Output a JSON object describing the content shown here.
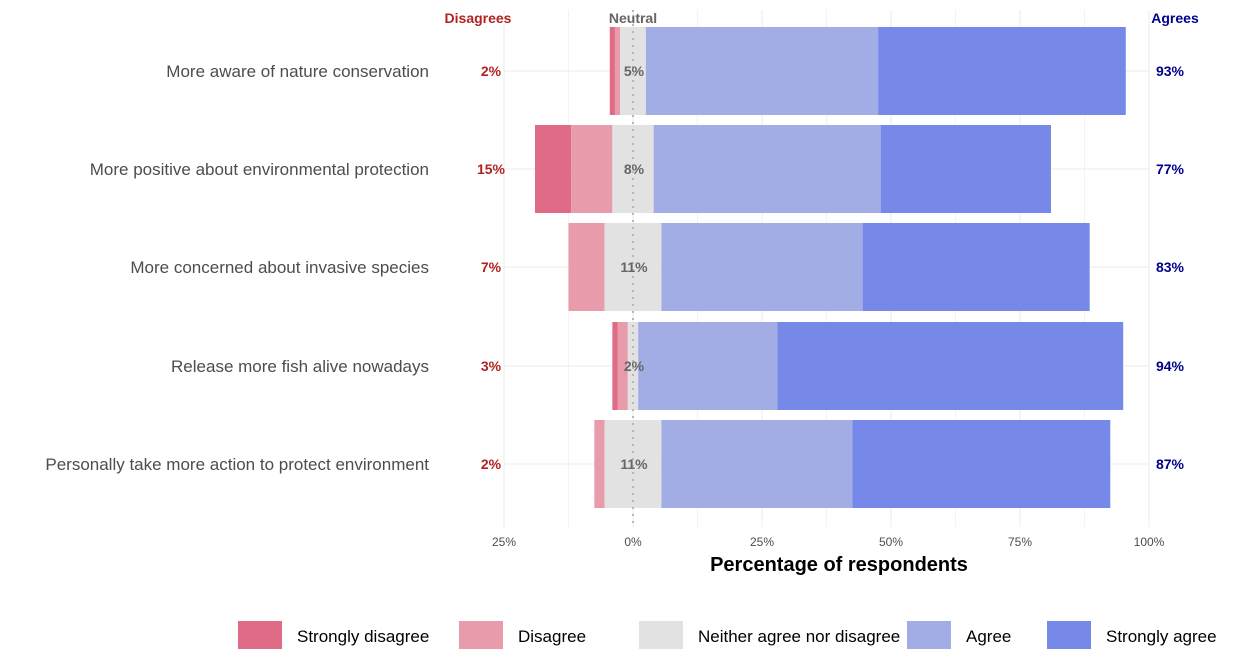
{
  "chart_data": {
    "type": "bar",
    "orientation": "horizontal",
    "stacked": "diverging",
    "xlabel": "Percentage of respondents",
    "x_ticks": [
      "25%",
      "0%",
      "25%",
      "50%",
      "75%",
      "100%"
    ],
    "x_tick_values": [
      -25,
      0,
      25,
      50,
      75,
      100
    ],
    "xlim": [
      -25,
      100
    ],
    "grid": true,
    "legend_position": "bottom",
    "column_headers": {
      "disagrees": "Disagrees",
      "neutral": "Neutral",
      "agrees": "Agrees"
    },
    "categories": [
      "More aware of nature conservation",
      "More positive about environmental protection",
      "More concerned about invasive species",
      "Release more fish alive nowadays",
      "Personally take more action to protect environment"
    ],
    "series": [
      {
        "name": "Strongly disagree",
        "color": "#e06b87",
        "values": [
          1,
          7,
          0,
          1,
          0
        ]
      },
      {
        "name": "Disagree",
        "color": "#e89cab",
        "values": [
          1,
          8,
          7,
          2,
          2
        ]
      },
      {
        "name": "Neither agree nor disagree",
        "color": "#e2e2e2",
        "values": [
          5,
          8,
          11,
          2,
          11
        ]
      },
      {
        "name": "Agree",
        "color": "#a2ade6",
        "values": [
          45,
          44,
          39,
          27,
          37
        ]
      },
      {
        "name": "Strongly agree",
        "color": "#7689e8",
        "values": [
          48,
          33,
          44,
          67,
          50
        ]
      }
    ],
    "disagree_labels": [
      "2%",
      "15%",
      "7%",
      "3%",
      "2%"
    ],
    "neutral_labels": [
      "5%",
      "8%",
      "11%",
      "2%",
      "11%"
    ],
    "agree_labels": [
      "93%",
      "77%",
      "83%",
      "94%",
      "87%"
    ],
    "colors": {
      "disagree_text": "#b22222",
      "agree_text": "#00008b",
      "neutral_text": "#666666"
    }
  }
}
